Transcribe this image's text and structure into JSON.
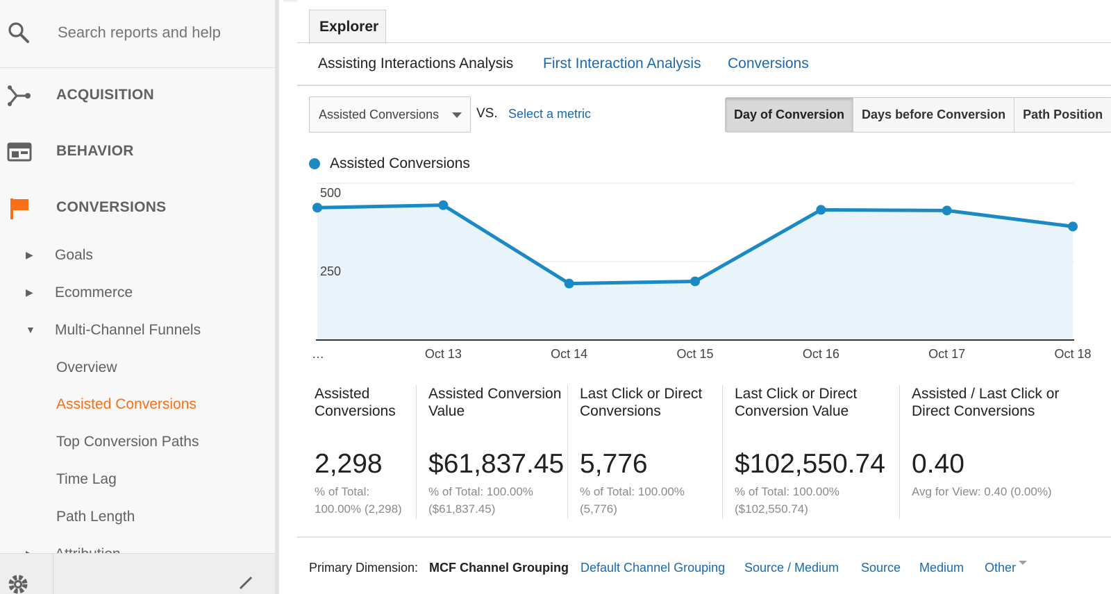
{
  "sidebar": {
    "search_placeholder": "Search reports and help",
    "sections": [
      {
        "label": "ACQUISITION",
        "icon": "acquisition-icon"
      },
      {
        "label": "BEHAVIOR",
        "icon": "behavior-icon"
      },
      {
        "label": "CONVERSIONS",
        "icon": "flag-icon"
      }
    ],
    "sub_items": [
      {
        "label": "Goals",
        "expanded": false
      },
      {
        "label": "Ecommerce",
        "expanded": false
      },
      {
        "label": "Multi-Channel Funnels",
        "expanded": true
      }
    ],
    "mcf_items": [
      "Overview",
      "Assisted Conversions",
      "Top Conversion Paths",
      "Time Lag",
      "Path Length"
    ],
    "active_item": "Assisted Conversions",
    "partial_item": "Attribution"
  },
  "main": {
    "tab": "Explorer",
    "subtabs": [
      "Assisting Interactions Analysis",
      "First Interaction Analysis",
      "Conversions"
    ],
    "metric_select": "Assisted Conversions",
    "vs": "VS.",
    "select_metric": "Select a metric",
    "view_buttons": [
      "Day of Conversion",
      "Days before Conversion",
      "Path Position"
    ],
    "legend": "Assisted Conversions"
  },
  "chart_data": {
    "type": "area",
    "title": "",
    "series": [
      {
        "name": "Assisted Conversions",
        "color": "#1b8ac4",
        "values": [
          422,
          430,
          180,
          187,
          415,
          413,
          362
        ]
      }
    ],
    "categories": [
      "…",
      "Oct 13",
      "Oct 14",
      "Oct 15",
      "Oct 16",
      "Oct 17",
      "Oct 18"
    ],
    "y_ticks": [
      "500",
      "250"
    ],
    "ylim": [
      0,
      500
    ],
    "grid": true
  },
  "kpis": [
    {
      "label": "Assisted Conversions",
      "value": "2,298",
      "sub1": "% of Total:",
      "sub2": "100.00% (2,298)"
    },
    {
      "label": "Assisted Conversion Value",
      "value": "$61,837.45",
      "sub1": "% of Total: 100.00%",
      "sub2": "($61,837.45)"
    },
    {
      "label": "Last Click or Direct Conversions",
      "value": "5,776",
      "sub1": "% of Total: 100.00%",
      "sub2": "(5,776)"
    },
    {
      "label": "Last Click or Direct Conversion Value",
      "value": "$102,550.74",
      "sub1": "% of Total: 100.00%",
      "sub2": "($102,550.74)"
    },
    {
      "label": "Assisted / Last Click or Direct Conversions",
      "value": "0.40",
      "sub1": "Avg for View: 0.40 (0.00%)",
      "sub2": ""
    }
  ],
  "dimension": {
    "label": "Primary Dimension:",
    "current": "MCF Channel Grouping",
    "options": [
      "Default Channel Grouping",
      "Source / Medium",
      "Source",
      "Medium",
      "Other"
    ]
  },
  "colors": {
    "accent": "#f76f16",
    "link": "#1a69b0",
    "series": "#1b8ac4"
  }
}
